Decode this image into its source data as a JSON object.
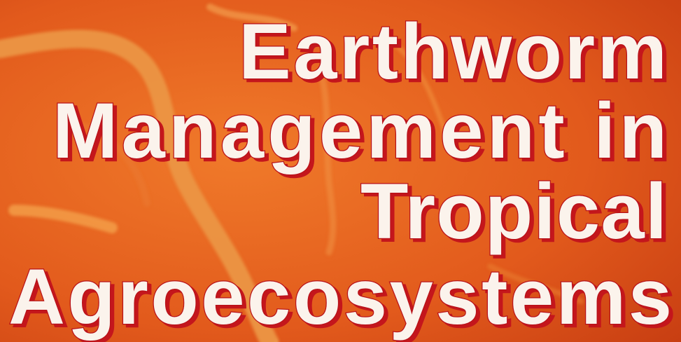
{
  "title": {
    "lines": [
      "Earthworm",
      "Management in",
      "Tropical",
      "Agroecosystems"
    ]
  }
}
